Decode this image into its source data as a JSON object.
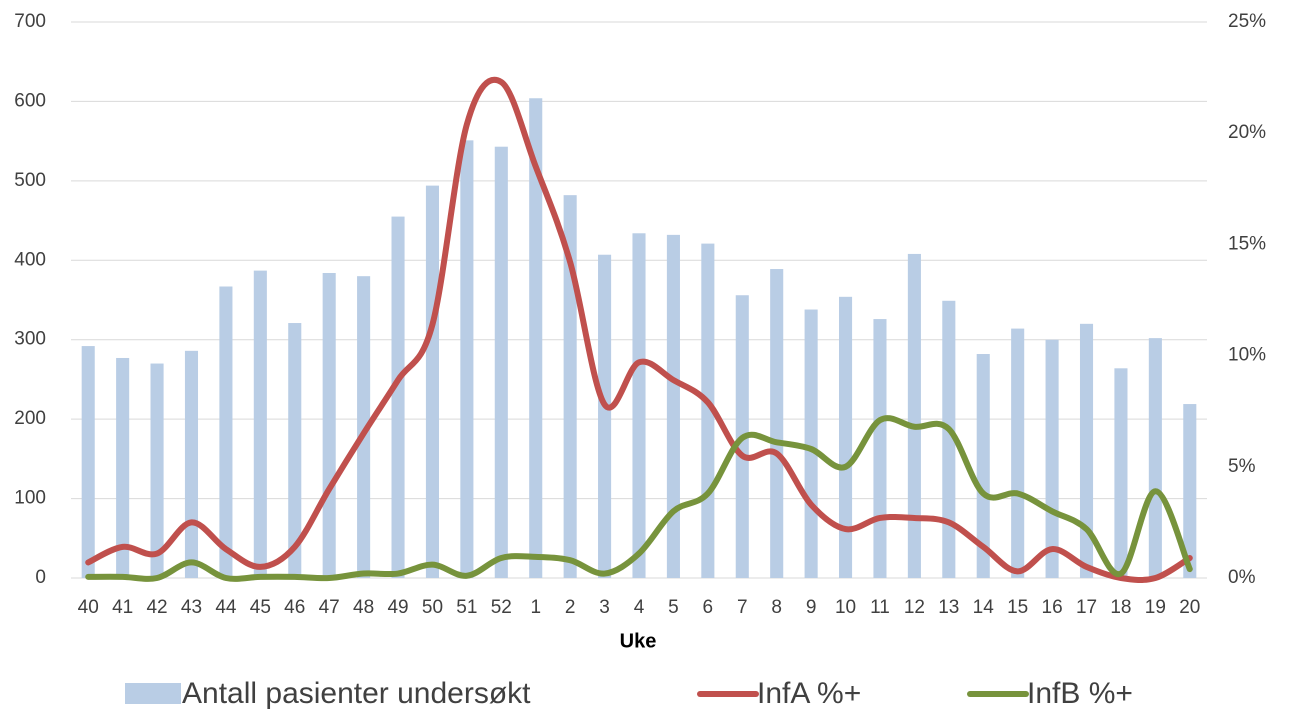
{
  "chart_data": {
    "type": "bar_line",
    "x_label": "Uke",
    "categories": [
      "40",
      "41",
      "42",
      "43",
      "44",
      "45",
      "46",
      "47",
      "48",
      "49",
      "50",
      "51",
      "52",
      "1",
      "2",
      "3",
      "4",
      "5",
      "6",
      "7",
      "8",
      "9",
      "10",
      "11",
      "12",
      "13",
      "14",
      "15",
      "16",
      "17",
      "18",
      "19",
      "20"
    ],
    "series": [
      {
        "name": "Antall pasienter undersøkt",
        "color": "#b9cde5",
        "type": "bar",
        "axis": "y",
        "values": [
          292,
          277,
          270,
          286,
          367,
          387,
          321,
          384,
          380,
          455,
          494,
          551,
          543,
          604,
          482,
          407,
          434,
          432,
          421,
          356,
          389,
          338,
          354,
          326,
          408,
          349,
          282,
          314,
          300,
          320,
          264,
          302,
          219
        ]
      },
      {
        "name": "InfA %+",
        "color": "#c0504d",
        "type": "line",
        "axis": "y2",
        "values": [
          0.7,
          1.4,
          1.1,
          2.5,
          1.3,
          0.5,
          1.4,
          4.0,
          6.5,
          8.9,
          11.4,
          20.4,
          22.3,
          18.5,
          14.2,
          7.8,
          9.7,
          8.9,
          7.9,
          5.5,
          5.6,
          3.3,
          2.2,
          2.7,
          2.7,
          2.5,
          1.4,
          0.3,
          1.3,
          0.5,
          0,
          0,
          0.9
        ]
      },
      {
        "name": "InfB %+",
        "color": "#77933c",
        "type": "line",
        "axis": "y2",
        "values": [
          0.05,
          0.05,
          0,
          0.7,
          0,
          0.05,
          0.05,
          0,
          0.2,
          0.2,
          0.6,
          0.1,
          0.9,
          0.95,
          0.8,
          0.2,
          1.1,
          3.0,
          3.8,
          6.3,
          6.1,
          5.8,
          5.0,
          7.1,
          6.8,
          6.7,
          3.8,
          3.8,
          3.0,
          2.2,
          0.2,
          3.9,
          0.4
        ]
      }
    ],
    "ylim": [
      0,
      700
    ],
    "yticks": [
      0,
      100,
      200,
      300,
      400,
      500,
      600,
      700
    ],
    "y2lim": [
      0,
      25
    ],
    "y2ticks": [
      {
        "value": 0,
        "label": "0%"
      },
      {
        "value": 5,
        "label": "5%"
      },
      {
        "value": 10,
        "label": "10%"
      },
      {
        "value": 15,
        "label": "15%"
      },
      {
        "value": 20,
        "label": "20%"
      },
      {
        "value": 25,
        "label": "25%"
      }
    ],
    "grid": true,
    "legend": "bottom"
  }
}
